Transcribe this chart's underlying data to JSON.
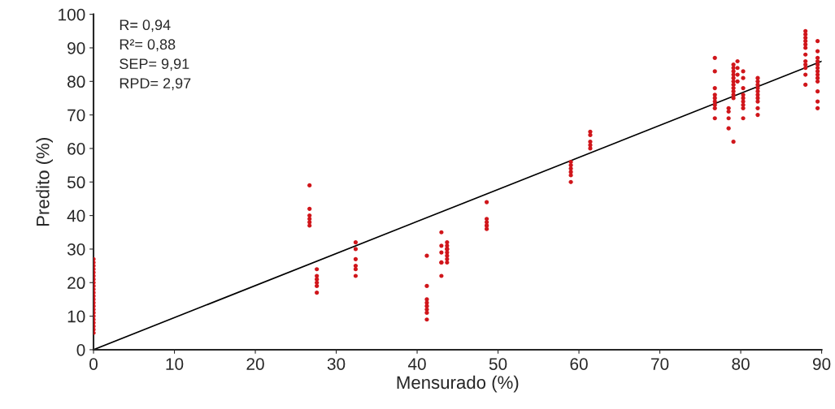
{
  "chart_data": {
    "type": "scatter",
    "xlabel": "Mensurado (%)",
    "ylabel": "Predito (%)",
    "xlim": [
      0,
      90
    ],
    "ylim": [
      0,
      100
    ],
    "xticks": [
      0,
      10,
      20,
      30,
      40,
      50,
      60,
      70,
      80,
      90
    ],
    "yticks": [
      0,
      10,
      20,
      30,
      40,
      50,
      60,
      70,
      80,
      90,
      100
    ],
    "grid": false,
    "annotations": [
      "R= 0,94",
      "R²= 0,88",
      "SEP= 9,91",
      "RPD= 2,97"
    ],
    "series": [
      {
        "color": "#d0161b",
        "marker": "circle",
        "x": [
          0,
          0,
          0,
          0,
          0,
          0,
          0,
          0,
          0,
          0,
          0,
          0,
          0,
          0,
          0,
          0,
          0,
          0,
          0,
          0,
          0,
          0,
          0,
          26.7,
          26.7,
          26.7,
          26.7,
          26.7,
          26.7,
          27.6,
          27.6,
          27.6,
          27.6,
          27.6,
          27.6,
          32.4,
          32.4,
          32.4,
          32.4,
          32.4,
          32.4,
          41.2,
          41.2,
          41.2,
          41.2,
          41.2,
          41.2,
          41.2,
          41.2,
          43.0,
          43.0,
          43.0,
          43.0,
          43.0,
          43.0,
          43.7,
          43.7,
          43.7,
          43.7,
          43.7,
          43.7,
          43.7,
          43.7,
          48.6,
          48.6,
          48.6,
          48.6,
          48.6,
          48.6,
          59.0,
          59.0,
          59.0,
          59.0,
          59.0,
          59.0,
          61.4,
          61.4,
          61.4,
          61.4,
          61.4,
          76.8,
          76.8,
          76.8,
          76.8,
          76.8,
          76.8,
          76.8,
          76.8,
          76.8,
          78.5,
          78.5,
          78.5,
          78.5,
          79.1,
          79.1,
          79.1,
          79.1,
          79.1,
          79.1,
          79.1,
          79.1,
          79.1,
          79.1,
          79.1,
          79.1,
          79.6,
          79.6,
          79.6,
          79.6,
          80.3,
          80.3,
          80.3,
          80.3,
          80.3,
          80.3,
          80.3,
          80.3,
          80.3,
          82.1,
          82.1,
          82.1,
          82.1,
          82.1,
          82.1,
          82.1,
          82.1,
          82.1,
          82.1,
          88.0,
          88.0,
          88.0,
          88.0,
          88.0,
          88.0,
          88.0,
          88.0,
          88.0,
          88.0,
          88.0,
          88.0,
          89.5,
          89.5,
          89.5,
          89.5,
          89.5,
          89.5,
          89.5,
          89.5,
          89.5,
          89.5,
          89.5,
          89.5,
          89.5
        ],
        "values": [
          27,
          26,
          25,
          24,
          23,
          22,
          21,
          20,
          19,
          18,
          17,
          16,
          15,
          14,
          13,
          12,
          11,
          10,
          9,
          8,
          7,
          6,
          5,
          49,
          42,
          40,
          39,
          38,
          37,
          24,
          22,
          21,
          20,
          19,
          17,
          32,
          30,
          27,
          25,
          24,
          22,
          28,
          19,
          15,
          14,
          13,
          12,
          11,
          9,
          35,
          31,
          29,
          26,
          26,
          22,
          32,
          31,
          30,
          30,
          29,
          28,
          27,
          26,
          44,
          39,
          38,
          37,
          37,
          36,
          56,
          55,
          54,
          53,
          52,
          50,
          65,
          64,
          62,
          61,
          60,
          87,
          83,
          78,
          76,
          75,
          74,
          73,
          72,
          69,
          72,
          71,
          69,
          66,
          85,
          84,
          83,
          82,
          81,
          80,
          79,
          78,
          77,
          76,
          75,
          62,
          86,
          84,
          82,
          80,
          83,
          81,
          78,
          76,
          75,
          74,
          73,
          72,
          69,
          81,
          80,
          79,
          78,
          77,
          76,
          75,
          74,
          72,
          70,
          95,
          94,
          93,
          92,
          91,
          90,
          88,
          86,
          85,
          84,
          82,
          79,
          92,
          89,
          87,
          86,
          85,
          84,
          83,
          82,
          81,
          80,
          77,
          74,
          72
        ]
      },
      {
        "type": "line",
        "marker": "none",
        "color": "#000000",
        "x": [
          0,
          90
        ],
        "values": [
          0,
          86
        ]
      }
    ]
  }
}
